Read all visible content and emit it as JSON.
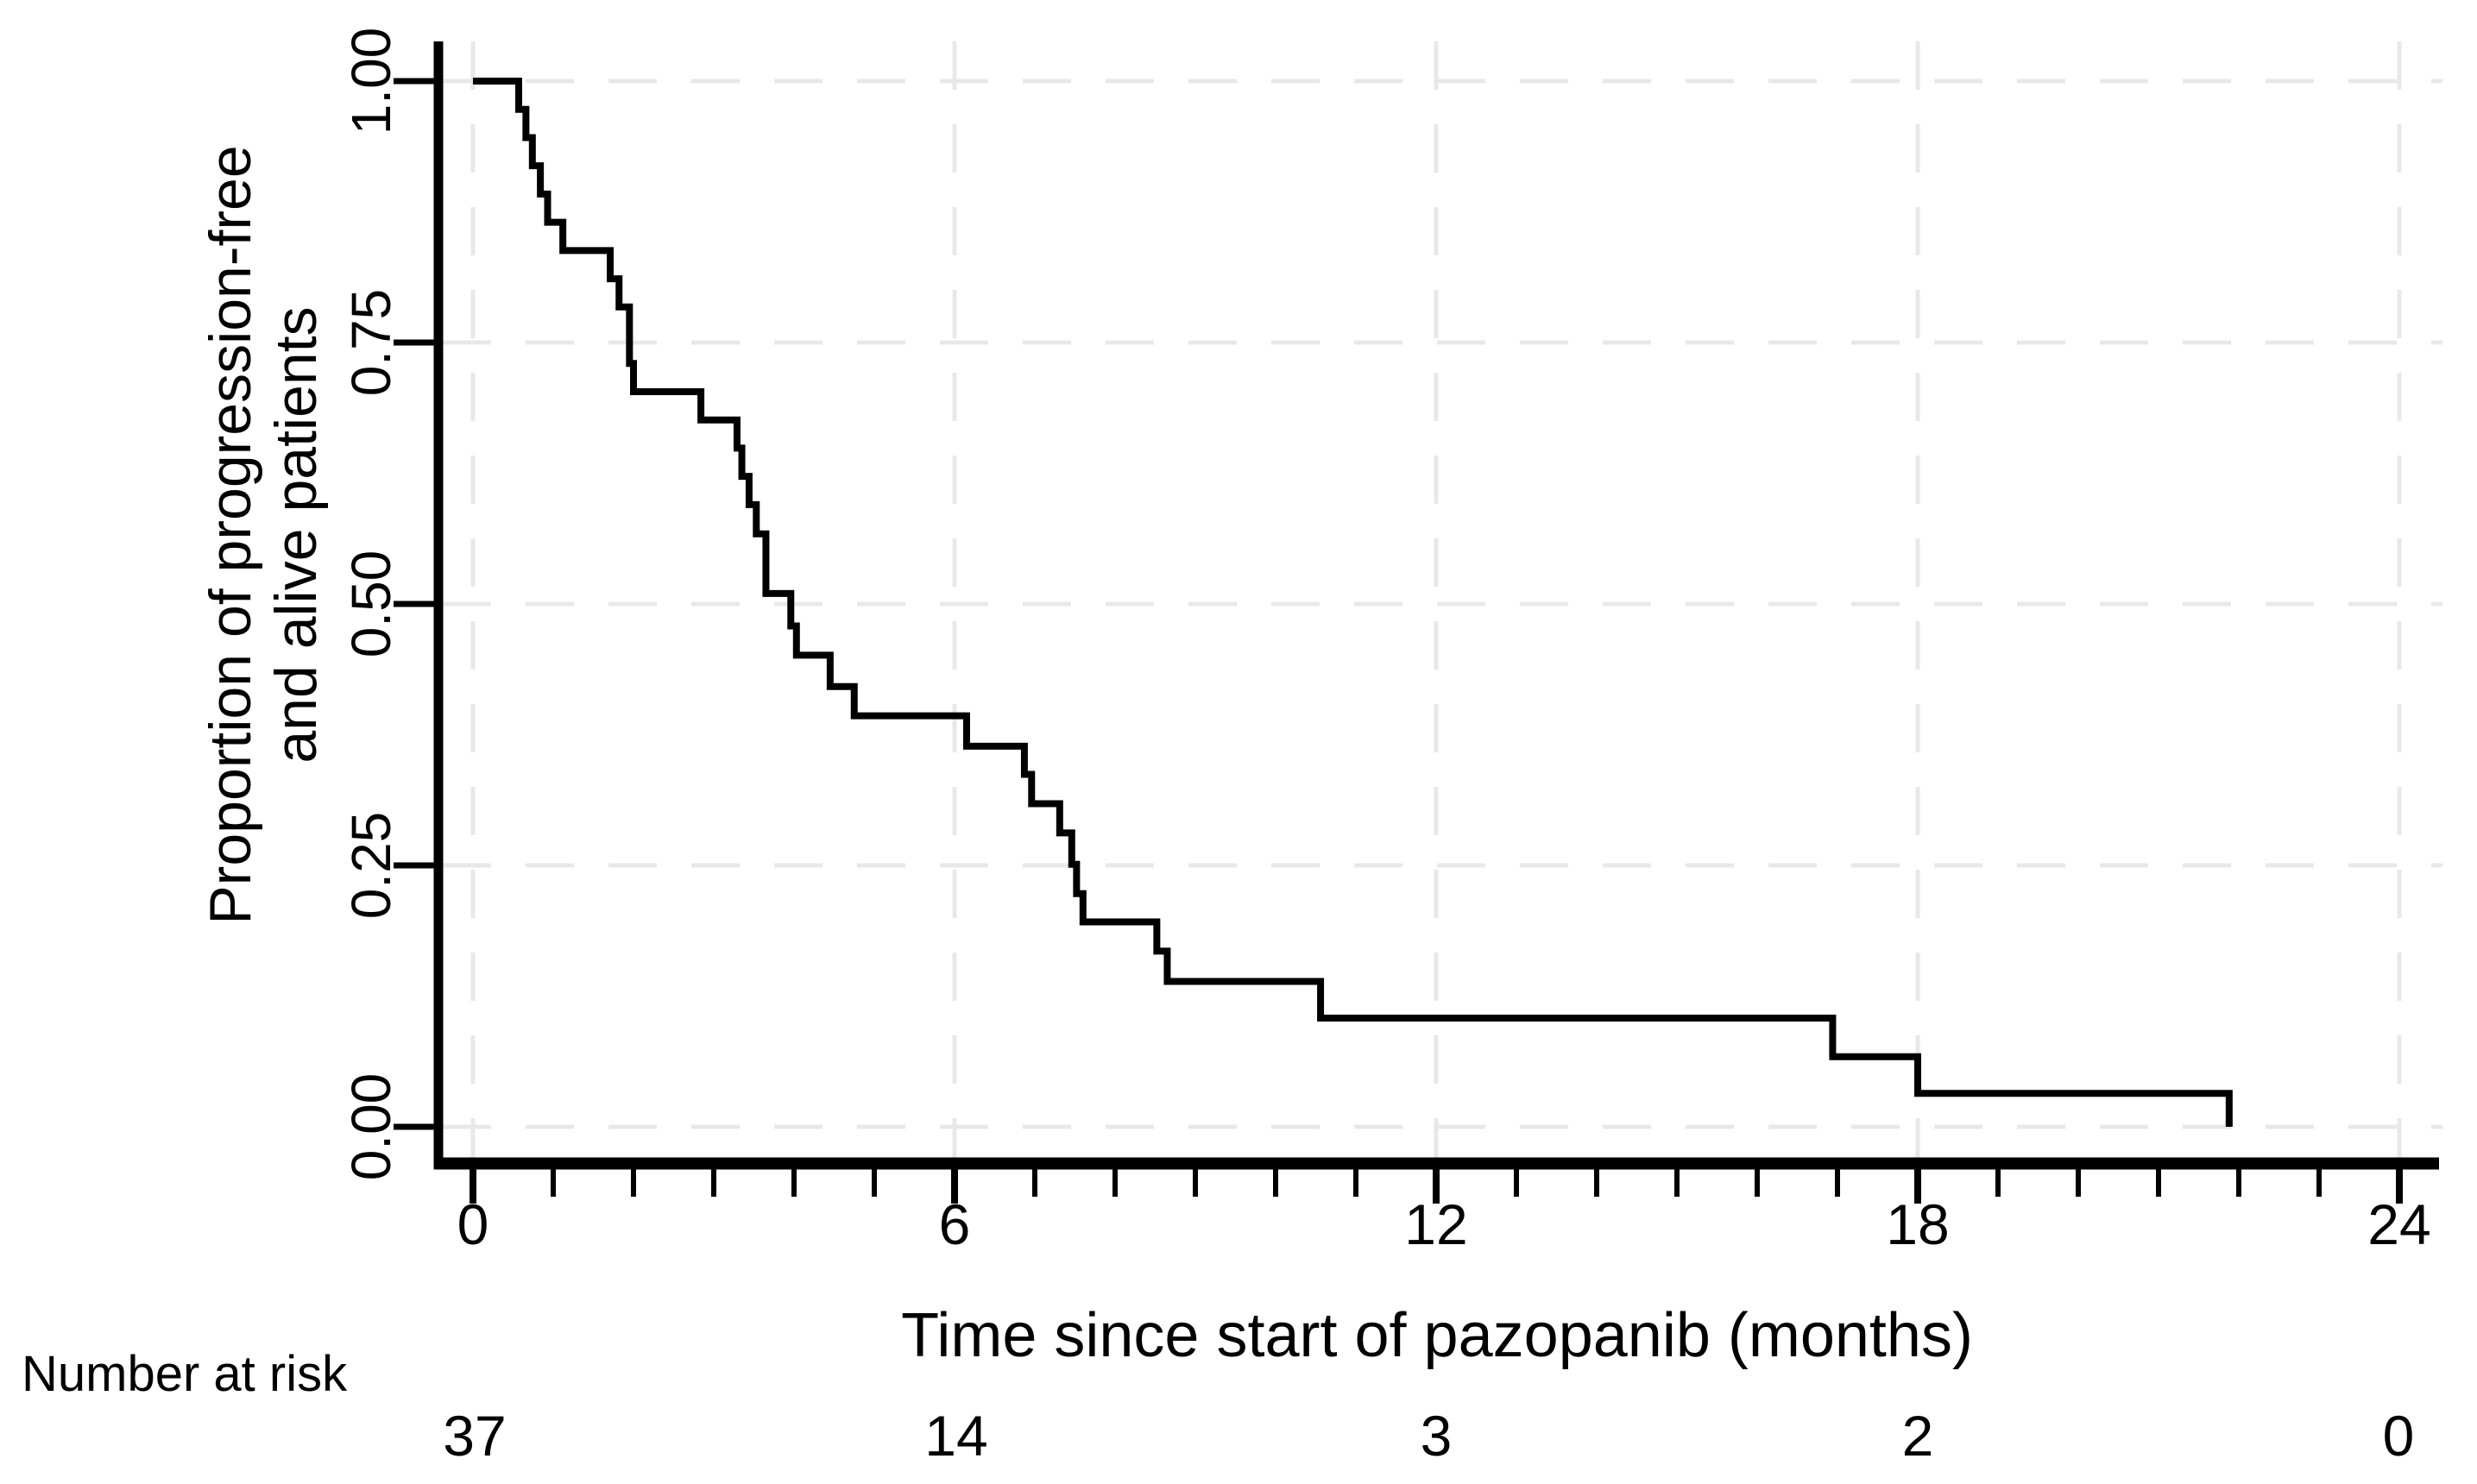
{
  "figure_title": "",
  "chart_data": {
    "type": "line",
    "chart_kind": "kaplan_meier_step_curve",
    "title": "",
    "xlabel": "Time since start of pazopanib (months)",
    "ylabel_lines": [
      "Proportion of progression-free",
      "and alive patients"
    ],
    "xlim": [
      0,
      24
    ],
    "ylim": [
      0.0,
      1.0
    ],
    "x_major_ticks": [
      0,
      6,
      12,
      18,
      24
    ],
    "x_tick_labels": [
      "0",
      "6",
      "12",
      "18",
      "24"
    ],
    "x_minor_tick_interval_months": 1,
    "y_major_ticks": [
      0.0,
      0.25,
      0.5,
      0.75,
      1.0
    ],
    "y_tick_labels": [
      "0.00",
      "0.25",
      "0.50",
      "0.75",
      "1.00"
    ],
    "grid": {
      "show": true,
      "style": "dashed",
      "vertical_at_x": [
        0,
        6,
        12,
        18,
        24
      ],
      "horizontal_at_y": [
        0.0,
        0.25,
        0.5,
        0.75,
        1.0
      ]
    },
    "legend_position": "none",
    "series": [
      {
        "name": "Progression-free and alive proportion",
        "type": "step",
        "points": [
          [
            0.0,
            1.0
          ],
          [
            0.57,
            0.973
          ],
          [
            0.66,
            0.946
          ],
          [
            0.74,
            0.919
          ],
          [
            0.84,
            0.892
          ],
          [
            0.93,
            0.865
          ],
          [
            1.12,
            0.838
          ],
          [
            1.71,
            0.811
          ],
          [
            1.82,
            0.784
          ],
          [
            1.95,
            0.73
          ],
          [
            2.0,
            0.703
          ],
          [
            2.84,
            0.676
          ],
          [
            3.29,
            0.649
          ],
          [
            3.35,
            0.622
          ],
          [
            3.44,
            0.595
          ],
          [
            3.53,
            0.567
          ],
          [
            3.65,
            0.51
          ],
          [
            3.96,
            0.479
          ],
          [
            4.03,
            0.451
          ],
          [
            4.45,
            0.421
          ],
          [
            4.75,
            0.393
          ],
          [
            6.15,
            0.364
          ],
          [
            6.87,
            0.337
          ],
          [
            6.96,
            0.309
          ],
          [
            7.31,
            0.281
          ],
          [
            7.46,
            0.251
          ],
          [
            7.52,
            0.223
          ],
          [
            7.6,
            0.196
          ],
          [
            8.52,
            0.168
          ],
          [
            8.65,
            0.139
          ],
          [
            10.56,
            0.104
          ],
          [
            16.94,
            0.067
          ],
          [
            18.0,
            0.032
          ],
          [
            21.88,
            0.0
          ]
        ]
      }
    ],
    "risk_table": {
      "label": "Number at risk",
      "times": [
        0,
        6,
        12,
        18,
        24
      ],
      "counts": [
        "37",
        "14",
        "3",
        "2",
        "0"
      ]
    },
    "colors": {
      "curve": "#000000",
      "axis": "#000000",
      "grid": "#e8e8e8",
      "text": "#000000",
      "background": "#ffffff"
    }
  }
}
